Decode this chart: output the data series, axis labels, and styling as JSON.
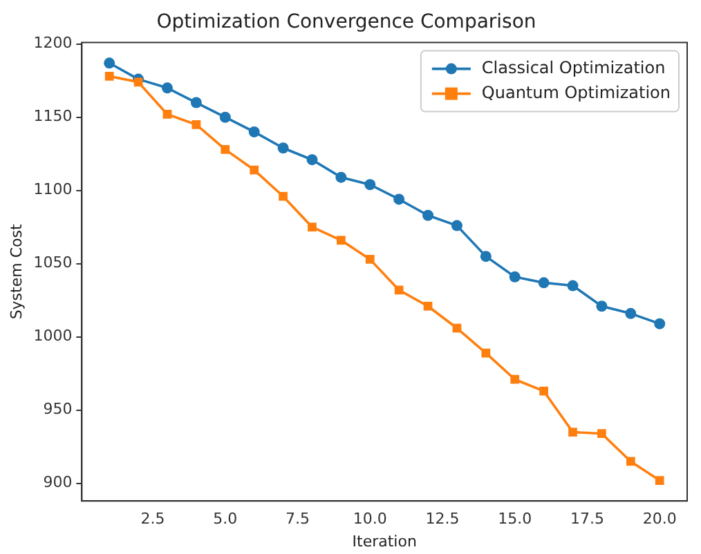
{
  "chart_data": {
    "type": "line",
    "title": "Optimization Convergence Comparison",
    "xlabel": "Iteration",
    "ylabel": "System Cost",
    "x": [
      1,
      2,
      3,
      4,
      5,
      6,
      7,
      8,
      9,
      10,
      11,
      12,
      13,
      14,
      15,
      16,
      17,
      18,
      19,
      20
    ],
    "series": [
      {
        "name": "Classical Optimization",
        "color": "#1f77b4",
        "marker": "circle",
        "values": [
          1187,
          1176,
          1170,
          1160,
          1150,
          1140,
          1129,
          1121,
          1109,
          1104,
          1094,
          1083,
          1076,
          1055,
          1041,
          1037,
          1035,
          1021,
          1016,
          1009
        ]
      },
      {
        "name": "Quantum Optimization",
        "color": "#ff7f0e",
        "marker": "square",
        "values": [
          1178,
          1174,
          1152,
          1145,
          1128,
          1114,
          1096,
          1075,
          1066,
          1053,
          1032,
          1021,
          1006,
          989,
          971,
          963,
          935,
          934,
          915,
          902
        ]
      }
    ],
    "xlim": [
      0.05,
      20.95
    ],
    "xticks": [
      2.5,
      {
        "value": 5,
        "label": "5.0"
      },
      7.5,
      {
        "value": 10,
        "label": "10.0"
      },
      12.5,
      {
        "value": 15,
        "label": "15.0"
      },
      17.5,
      {
        "value": 20,
        "label": "20.0"
      }
    ],
    "ylim": [
      888,
      1201
    ],
    "yticks": [
      900,
      950,
      1000,
      1050,
      1100,
      1150,
      1200
    ],
    "grid": false,
    "legend": "top right",
    "line_style": "solid"
  }
}
